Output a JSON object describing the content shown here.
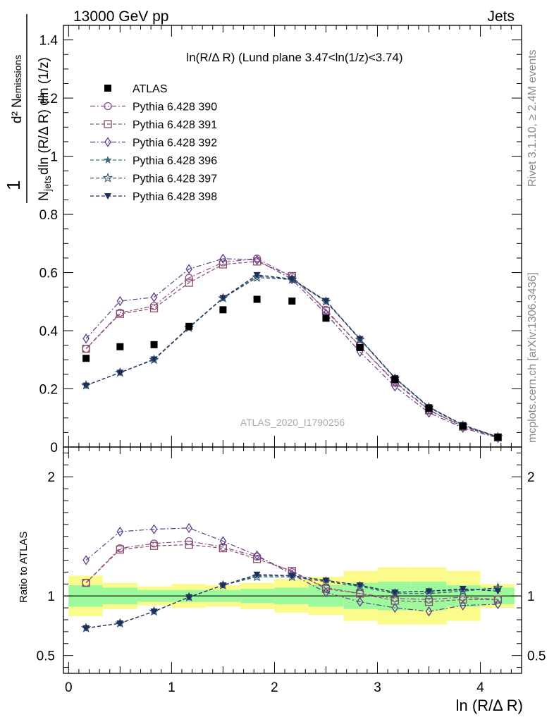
{
  "header": {
    "left": "13000 GeV pp",
    "right": "Jets"
  },
  "side_labels": {
    "rivet": "Rivet 3.1.10, ≥ 2.4M events",
    "mcplots": "mcplots.cern.ch [arXiv:1306.3436]"
  },
  "watermark": "ATLAS_2020_I1790256",
  "plot_title": "ln(R/Δ R) (Lund plane 3.47<ln(1/z)<3.74)",
  "colors": {
    "data": "#000000",
    "band_inner": "#9cf99c",
    "band_outer": "#fbfb8c",
    "series": [
      "#8a4f8a",
      "#8a4f6a",
      "#5b3f8a",
      "#3f6f7f",
      "#2e4f6e",
      "#1f2f5a"
    ]
  },
  "chart_data": [
    {
      "type": "scatter",
      "panel": "main",
      "title": "ln(R/Δ R) (Lund plane 3.47<ln(1/z)<3.74)",
      "xlabel": "ln (R/Δ R)",
      "ylabel": "1/N_jets d²N_emissions / dln(R/Δ R) dln(1/z)",
      "xlim": [
        -0.05,
        4.4
      ],
      "ylim": [
        0,
        1.45
      ],
      "yticks": [
        "0",
        "0.2",
        "0.4",
        "0.6",
        "0.8",
        "1",
        "1.2",
        "1.4"
      ],
      "legend_position": "top-left",
      "x": [
        0.17,
        0.5,
        0.83,
        1.17,
        1.5,
        1.83,
        2.17,
        2.5,
        2.83,
        3.17,
        3.5,
        3.83,
        4.17
      ],
      "series": [
        {
          "name": "ATLAS",
          "marker": "filled-square",
          "values": [
            0.305,
            0.345,
            0.352,
            0.415,
            0.472,
            0.508,
            0.502,
            0.443,
            0.342,
            0.232,
            0.133,
            0.072,
            0.034
          ]
        },
        {
          "name": "Pythia 6.428 390",
          "marker": "open-circle",
          "dash": "dashdot",
          "values": [
            0.338,
            0.462,
            0.485,
            0.582,
            0.635,
            0.648,
            0.585,
            0.472,
            0.347,
            0.225,
            0.128,
            0.071,
            0.033
          ]
        },
        {
          "name": "Pythia 6.428 391",
          "marker": "open-square",
          "dash": "dashed",
          "values": [
            0.338,
            0.458,
            0.477,
            0.565,
            0.628,
            0.638,
            0.588,
            0.468,
            0.347,
            0.222,
            0.126,
            0.07,
            0.033
          ]
        },
        {
          "name": "Pythia 6.428 392",
          "marker": "open-diamond",
          "dash": "dashdot",
          "values": [
            0.373,
            0.502,
            0.515,
            0.612,
            0.648,
            0.643,
            0.577,
            0.458,
            0.327,
            0.208,
            0.118,
            0.066,
            0.031
          ]
        },
        {
          "name": "Pythia 6.428 396",
          "marker": "filled-star",
          "dash": "dashed",
          "values": [
            0.212,
            0.256,
            0.302,
            0.41,
            0.512,
            0.587,
            0.578,
            0.502,
            0.372,
            0.238,
            0.138,
            0.075,
            0.035
          ]
        },
        {
          "name": "Pythia 6.428 397",
          "marker": "open-star",
          "dash": "dashed",
          "values": [
            0.212,
            0.256,
            0.3,
            0.41,
            0.512,
            0.583,
            0.576,
            0.5,
            0.37,
            0.236,
            0.136,
            0.074,
            0.035
          ]
        },
        {
          "name": "Pythia 6.428 398",
          "marker": "filled-triangle-down",
          "dash": "dashed",
          "values": [
            0.212,
            0.256,
            0.302,
            0.412,
            0.513,
            0.592,
            0.578,
            0.503,
            0.372,
            0.238,
            0.138,
            0.076,
            0.035
          ]
        }
      ]
    },
    {
      "type": "scatter",
      "panel": "ratio",
      "xlabel": "ln (R/Δ R)",
      "ylabel": "Ratio to ATLAS",
      "xlim": [
        -0.05,
        4.4
      ],
      "ylim": [
        0.35,
        2.25
      ],
      "xticks": [
        "0",
        "1",
        "2",
        "3",
        "4"
      ],
      "yticks": [
        "0.5",
        "1",
        "2"
      ],
      "x": [
        0.17,
        0.5,
        0.83,
        1.17,
        1.5,
        1.83,
        2.17,
        2.5,
        2.83,
        3.17,
        3.5,
        3.83,
        4.17
      ],
      "bin_edges": [
        0,
        0.33,
        0.67,
        1.0,
        1.33,
        1.67,
        2.0,
        2.33,
        2.67,
        3.0,
        3.33,
        3.67,
        4.0,
        4.33
      ],
      "band_inner": [
        [
          0.91,
          1.09
        ],
        [
          0.93,
          1.07
        ],
        [
          0.95,
          1.05
        ],
        [
          0.95,
          1.05
        ],
        [
          0.95,
          1.05
        ],
        [
          0.94,
          1.06
        ],
        [
          0.93,
          1.07
        ],
        [
          0.91,
          1.09
        ],
        [
          0.89,
          1.11
        ],
        [
          0.88,
          1.12
        ],
        [
          0.88,
          1.12
        ],
        [
          0.91,
          1.09
        ],
        [
          0.93,
          1.07
        ]
      ],
      "band_outer": [
        [
          0.83,
          1.17
        ],
        [
          0.89,
          1.11
        ],
        [
          0.92,
          1.08
        ],
        [
          0.9,
          1.1
        ],
        [
          0.91,
          1.09
        ],
        [
          0.89,
          1.11
        ],
        [
          0.86,
          1.14
        ],
        [
          0.84,
          1.16
        ],
        [
          0.79,
          1.21
        ],
        [
          0.76,
          1.24
        ],
        [
          0.76,
          1.24
        ],
        [
          0.79,
          1.21
        ],
        [
          0.9,
          1.1
        ]
      ],
      "series": [
        {
          "name": "Pythia 6.428 390",
          "values": [
            1.11,
            1.4,
            1.44,
            1.46,
            1.41,
            1.33,
            1.2,
            1.07,
            1.02,
            0.98,
            0.97,
            0.99,
            0.97
          ]
        },
        {
          "name": "Pythia 6.428 391",
          "values": [
            1.11,
            1.39,
            1.42,
            1.43,
            1.4,
            1.31,
            1.21,
            1.06,
            1.02,
            0.96,
            0.95,
            0.97,
            0.97
          ]
        },
        {
          "name": "Pythia 6.428 392",
          "values": [
            1.3,
            1.54,
            1.56,
            1.57,
            1.46,
            1.34,
            1.18,
            1.03,
            0.95,
            0.9,
            0.87,
            0.92,
            0.93
          ]
        },
        {
          "name": "Pythia 6.428 396",
          "values": [
            0.73,
            0.77,
            0.87,
            0.99,
            1.09,
            1.17,
            1.17,
            1.13,
            1.09,
            1.03,
            1.04,
            1.05,
            1.06
          ]
        },
        {
          "name": "Pythia 6.428 397",
          "values": [
            0.73,
            0.77,
            0.87,
            0.99,
            1.09,
            1.16,
            1.16,
            1.12,
            1.08,
            1.02,
            1.02,
            1.04,
            1.07
          ]
        },
        {
          "name": "Pythia 6.428 398",
          "values": [
            0.73,
            0.77,
            0.87,
            0.99,
            1.09,
            1.18,
            1.17,
            1.13,
            1.09,
            1.03,
            1.04,
            1.06,
            1.04
          ]
        }
      ]
    }
  ]
}
